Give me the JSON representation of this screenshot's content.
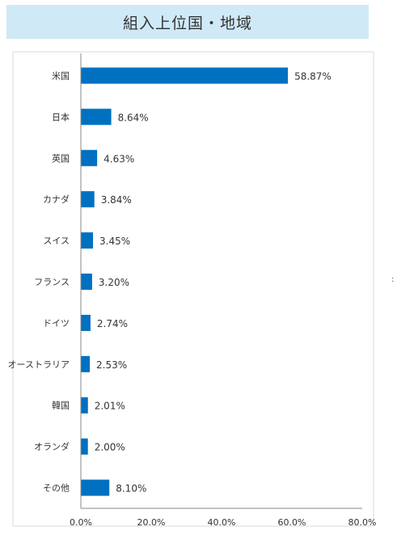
{
  "chart_data": {
    "type": "bar",
    "orientation": "horizontal",
    "title": "組入上位国・地域",
    "categories": [
      "米国",
      "日本",
      "英国",
      "カナダ",
      "スイス",
      "フランス",
      "ドイツ",
      "オーストラリア",
      "韓国",
      "オランダ",
      "その他"
    ],
    "values": [
      58.87,
      8.64,
      4.63,
      3.84,
      3.45,
      3.2,
      2.74,
      2.53,
      2.01,
      2.0,
      8.1
    ],
    "value_labels": [
      "58.87%",
      "8.64%",
      "4.63%",
      "3.84%",
      "3.45%",
      "3.20%",
      "2.74%",
      "2.53%",
      "2.01%",
      "2.00%",
      "8.10%"
    ],
    "xlim": [
      0,
      80
    ],
    "x_ticks": [
      0,
      20,
      40,
      60,
      80
    ],
    "x_tick_labels": [
      "0.0%",
      "20.0%",
      "40.0%",
      "60.0%",
      "80.0%"
    ],
    "xlabel": "",
    "ylabel": "",
    "grid": false,
    "bar_color": "#0070c0"
  },
  "colors": {
    "title_background": "#cfe9f7",
    "bar": "#0070c0"
  }
}
